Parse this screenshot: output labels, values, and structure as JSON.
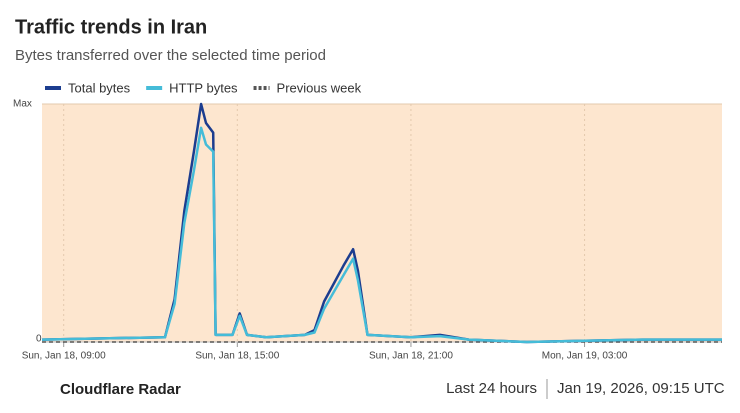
{
  "chart_data": {
    "type": "line",
    "title": "Traffic trends in Iran",
    "subtitle": "Bytes transferred over the selected time period",
    "x": [
      "Sun, Jan 18, 08:15",
      "Sun, Jan 18, 12:30",
      "Sun, Jan 18, 12:50",
      "Sun, Jan 18, 13:10",
      "Sun, Jan 18, 13:30",
      "Sun, Jan 18, 13:45",
      "Sun, Jan 18, 13:55",
      "Sun, Jan 18, 14:10",
      "Sun, Jan 18, 14:15",
      "Sun, Jan 18, 14:50",
      "Sun, Jan 18, 15:05",
      "Sun, Jan 18, 15:20",
      "Sun, Jan 18, 16:00",
      "Sun, Jan 18, 17:20",
      "Sun, Jan 18, 17:40",
      "Sun, Jan 18, 18:00",
      "Sun, Jan 18, 18:40",
      "Sun, Jan 18, 19:00",
      "Sun, Jan 18, 19:10",
      "Sun, Jan 18, 19:30",
      "Sun, Jan 18, 21:00",
      "Sun, Jan 18, 22:00",
      "Sun, Jan 18, 23:00",
      "Mon, Jan 19, 01:00",
      "Mon, Jan 19, 03:00",
      "Mon, Jan 19, 05:00",
      "Mon, Jan 19, 07:45"
    ],
    "series": [
      {
        "name": "Total bytes",
        "color": "#1c3d8f",
        "line_style": "solid",
        "values": [
          0.01,
          0.02,
          0.18,
          0.55,
          0.8,
          1.0,
          0.92,
          0.88,
          0.03,
          0.03,
          0.12,
          0.03,
          0.02,
          0.03,
          0.05,
          0.17,
          0.32,
          0.39,
          0.3,
          0.03,
          0.02,
          0.03,
          0.01,
          0.0,
          0.005,
          0.01,
          0.01
        ]
      },
      {
        "name": "HTTP bytes",
        "color": "#45bcd8",
        "line_style": "solid",
        "values": [
          0.01,
          0.02,
          0.16,
          0.5,
          0.72,
          0.9,
          0.83,
          0.8,
          0.03,
          0.03,
          0.11,
          0.03,
          0.02,
          0.03,
          0.04,
          0.14,
          0.28,
          0.35,
          0.26,
          0.03,
          0.02,
          0.025,
          0.01,
          0.0,
          0.005,
          0.01,
          0.01
        ]
      },
      {
        "name": "Previous week",
        "color": "#555555",
        "line_style": "dashed",
        "values": [
          0,
          0,
          0,
          0,
          0,
          0,
          0,
          0,
          0,
          0,
          0,
          0,
          0,
          0,
          0,
          0,
          0,
          0,
          0,
          0,
          0,
          0,
          0,
          0,
          0,
          0,
          0
        ]
      }
    ],
    "xlim": [
      "Sun, Jan 18, 08:15",
      "Mon, Jan 19, 07:45"
    ],
    "xticks": [
      "Sun, Jan 18, 09:00",
      "Sun, Jan 18, 15:00",
      "Sun, Jan 18, 21:00",
      "Mon, Jan 19, 03:00"
    ],
    "ylim": [
      0,
      1
    ],
    "yticks": [
      0,
      {
        "value": 1,
        "label": "Max"
      }
    ],
    "plot_background": "#fde6cf",
    "grid": true,
    "legend": "top-left",
    "footer": {
      "source": "Cloudflare Radar",
      "range": "Last 24 hours",
      "timestamp": "Jan 19, 2026, 09:15 UTC"
    }
  }
}
